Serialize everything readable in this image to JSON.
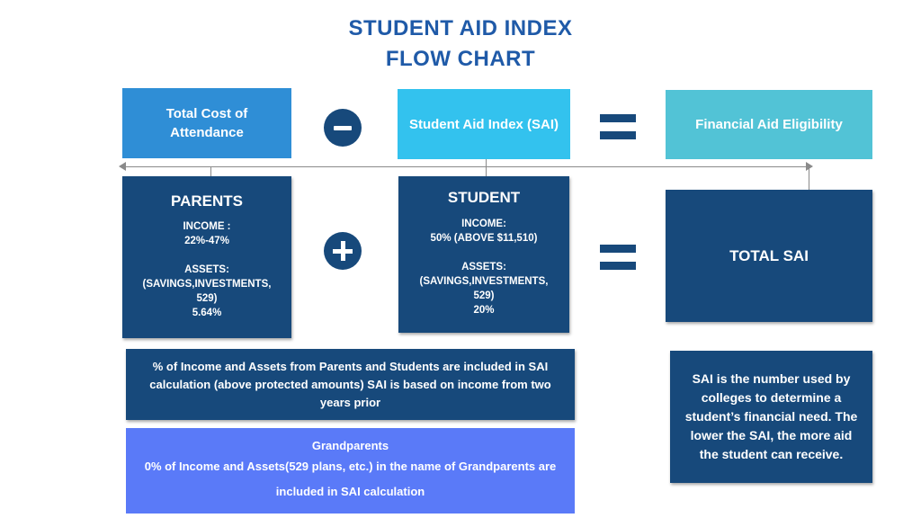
{
  "title": {
    "line1": "STUDENT AID INDEX",
    "line2": "FLOW CHART"
  },
  "top_row": {
    "cost_box": "Total Cost of Attendance",
    "sai_box": "Student Aid Index (SAI)",
    "eligibility_box": "Financial Aid Eligibility"
  },
  "parents": {
    "heading": "PARENTS",
    "income_label": "INCOME :",
    "income_value": "22%-47%",
    "assets_label": "ASSETS:",
    "assets_detail": "(SAVINGS,INVESTMENTS, 529)",
    "assets_value": "5.64%"
  },
  "student": {
    "heading": "STUDENT",
    "income_label": "INCOME:",
    "income_value": "50% (ABOVE $11,510)",
    "assets_label": "ASSETS:",
    "assets_detail": "(SAVINGS,INVESTMENTS, 529)",
    "assets_value": "20%"
  },
  "total_sai": "TOTAL SAI",
  "note_income": "% of Income and Assets from Parents and Students are included in SAI calculation (above protected amounts) SAI is based on income from two years prior",
  "grandparents": {
    "heading": "Grandparents",
    "text": "0% of Income and Assets(529 plans, etc.) in the name of Grandparents are included in SAI calculation"
  },
  "sai_explainer": "SAI is the number used by colleges to determine a student’s financial need. The lower the SAI, the more aid the student can receive.",
  "colors": {
    "title": "#1f5aa8",
    "cost_box": "#2f8ed6",
    "sai_box": "#33c2ee",
    "eligibility_box": "#52c3d6",
    "dark_box": "#17497b",
    "grandparents_box": "#5a7af8"
  },
  "icons": {
    "minus": "minus-circle-icon",
    "plus": "plus-circle-icon",
    "equals": "equals-icon"
  }
}
